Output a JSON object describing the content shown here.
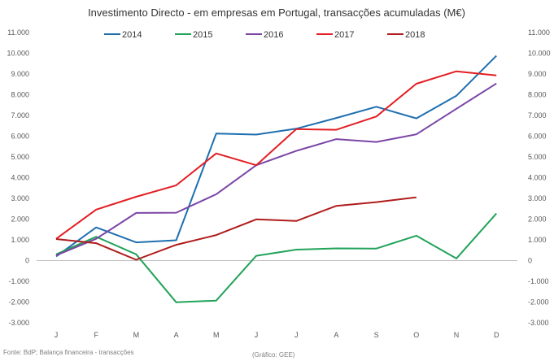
{
  "chart_data": {
    "type": "line",
    "title": "Investimento Directo - em empresas em Portugal, transacções acumuladas (M€)",
    "categories": [
      "J",
      "F",
      "M",
      "A",
      "M",
      "J",
      "J",
      "A",
      "S",
      "O",
      "N",
      "D"
    ],
    "ylim": [
      -3000,
      11000
    ],
    "yticks": [
      -3000,
      -2000,
      -1000,
      0,
      1000,
      2000,
      3000,
      4000,
      5000,
      6000,
      7000,
      8000,
      9000,
      10000,
      11000
    ],
    "ytick_labels": [
      "-3.000",
      "-2.000",
      "-1.000",
      "0",
      "1.000",
      "2.000",
      "3.000",
      "4.000",
      "5.000",
      "6.000",
      "7.000",
      "8.000",
      "9.000",
      "10.000",
      "11.000"
    ],
    "legend_position": "top",
    "grid": false,
    "series": [
      {
        "name": "2014",
        "color": "#1f6fb0",
        "values": [
          200,
          1600,
          880,
          980,
          6130,
          6080,
          6360,
          6880,
          7420,
          6860,
          7950,
          9880
        ]
      },
      {
        "name": "2015",
        "color": "#22a35a",
        "values": [
          300,
          1150,
          300,
          -2010,
          -1930,
          230,
          530,
          590,
          580,
          1200,
          100,
          2270
        ]
      },
      {
        "name": "2016",
        "color": "#7a45a6",
        "values": [
          250,
          1050,
          2300,
          2310,
          3200,
          4600,
          5290,
          5860,
          5720,
          6090,
          7320,
          8540
        ]
      },
      {
        "name": "2017",
        "color": "#e31e24",
        "values": [
          1050,
          2460,
          3080,
          3630,
          5170,
          4600,
          6340,
          6310,
          6950,
          8530,
          9130,
          8930
        ]
      },
      {
        "name": "2018",
        "color": "#b01c1c",
        "values": [
          1040,
          840,
          40,
          760,
          1230,
          1990,
          1910,
          2640,
          2820,
          3050,
          null,
          null
        ]
      }
    ],
    "footer_source": "Fonte: BdP; Balança financeira - transacções",
    "footer_credit": "(Gráfico: GEE)"
  }
}
